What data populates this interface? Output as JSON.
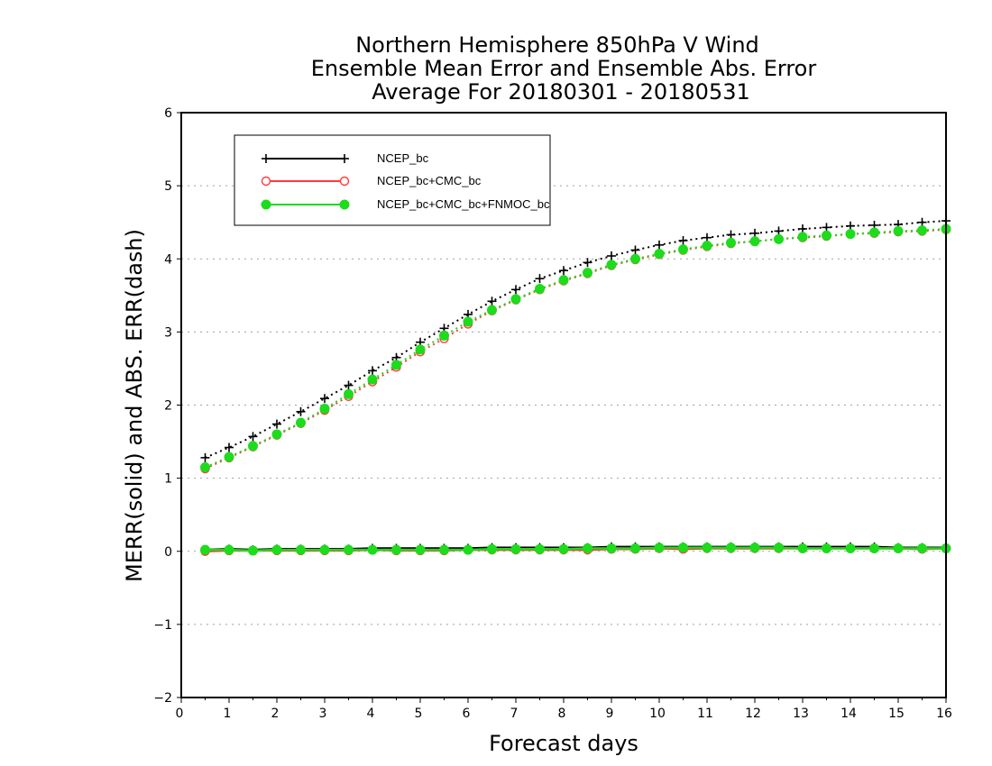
{
  "chart_data": {
    "type": "line",
    "title_lines": [
      "Northern Hemisphere 850hPa V Wind",
      "Ensemble Mean Error and Ensemble Abs. Error",
      "Average For 20180301 - 20180531"
    ],
    "xlabel": "Forecast days",
    "ylabel": "MERR(solid) and ABS. ERR(dash)",
    "xlim": [
      0,
      16
    ],
    "ylim": [
      -2,
      6
    ],
    "x_ticks": [
      0,
      1,
      2,
      3,
      4,
      5,
      6,
      7,
      8,
      9,
      10,
      11,
      12,
      13,
      14,
      15,
      16
    ],
    "y_ticks": [
      -2,
      -1,
      0,
      1,
      2,
      3,
      4,
      5,
      6
    ],
    "grid": "horizontal dotted",
    "legend_position": "upper-left",
    "x": [
      0.5,
      1,
      1.5,
      2,
      2.5,
      3,
      3.5,
      4,
      4.5,
      5,
      5.5,
      6,
      6.5,
      7,
      7.5,
      8,
      8.5,
      9,
      9.5,
      10,
      10.5,
      11,
      11.5,
      12,
      12.5,
      13,
      13.5,
      14,
      14.5,
      15,
      15.5,
      16
    ],
    "series": [
      {
        "name": "NCEP_bc",
        "color": "#000000",
        "marker": "plus",
        "abs_err": [
          1.28,
          1.42,
          1.57,
          1.74,
          1.91,
          2.09,
          2.27,
          2.47,
          2.65,
          2.86,
          3.05,
          3.24,
          3.42,
          3.58,
          3.73,
          3.84,
          3.95,
          4.04,
          4.12,
          4.19,
          4.25,
          4.29,
          4.33,
          4.35,
          4.38,
          4.41,
          4.43,
          4.45,
          4.46,
          4.47,
          4.5,
          4.52
        ],
        "mean_err": [
          0.02,
          0.03,
          0.02,
          0.03,
          0.03,
          0.03,
          0.03,
          0.04,
          0.04,
          0.04,
          0.04,
          0.04,
          0.05,
          0.05,
          0.05,
          0.05,
          0.05,
          0.06,
          0.06,
          0.06,
          0.06,
          0.06,
          0.06,
          0.06,
          0.06,
          0.06,
          0.06,
          0.06,
          0.06,
          0.05,
          0.05,
          0.05
        ]
      },
      {
        "name": "NCEP_bc+CMC_bc",
        "color": "#ff3a3a",
        "marker": "open-circle",
        "abs_err": [
          1.13,
          1.28,
          1.43,
          1.59,
          1.75,
          1.93,
          2.12,
          2.32,
          2.52,
          2.73,
          2.91,
          3.11,
          3.29,
          3.44,
          3.58,
          3.7,
          3.8,
          3.91,
          3.99,
          4.06,
          4.12,
          4.17,
          4.21,
          4.24,
          4.27,
          4.29,
          4.31,
          4.34,
          4.35,
          4.37,
          4.38,
          4.4
        ],
        "mean_err": [
          0.0,
          0.01,
          0.01,
          0.01,
          0.01,
          0.01,
          0.01,
          0.02,
          0.01,
          0.01,
          0.01,
          0.02,
          0.02,
          0.02,
          0.02,
          0.02,
          0.02,
          0.03,
          0.03,
          0.04,
          0.03,
          0.04,
          0.04,
          0.04,
          0.04,
          0.04,
          0.04,
          0.04,
          0.04,
          0.04,
          0.03,
          0.04
        ]
      },
      {
        "name": "NCEP_bc+CMC_bc+FNMOC_bc",
        "color": "#1cdc1c",
        "marker": "filled-circle",
        "abs_err": [
          1.15,
          1.29,
          1.44,
          1.6,
          1.76,
          1.95,
          2.15,
          2.35,
          2.55,
          2.76,
          2.95,
          3.14,
          3.3,
          3.45,
          3.59,
          3.71,
          3.81,
          3.92,
          4.0,
          4.07,
          4.13,
          4.18,
          4.22,
          4.24,
          4.27,
          4.3,
          4.32,
          4.34,
          4.36,
          4.38,
          4.39,
          4.41
        ],
        "mean_err": [
          0.02,
          0.02,
          0.01,
          0.02,
          0.02,
          0.02,
          0.02,
          0.02,
          0.02,
          0.02,
          0.02,
          0.02,
          0.03,
          0.03,
          0.03,
          0.03,
          0.04,
          0.04,
          0.04,
          0.05,
          0.05,
          0.05,
          0.05,
          0.05,
          0.05,
          0.04,
          0.04,
          0.04,
          0.04,
          0.04,
          0.04,
          0.04
        ]
      }
    ]
  }
}
